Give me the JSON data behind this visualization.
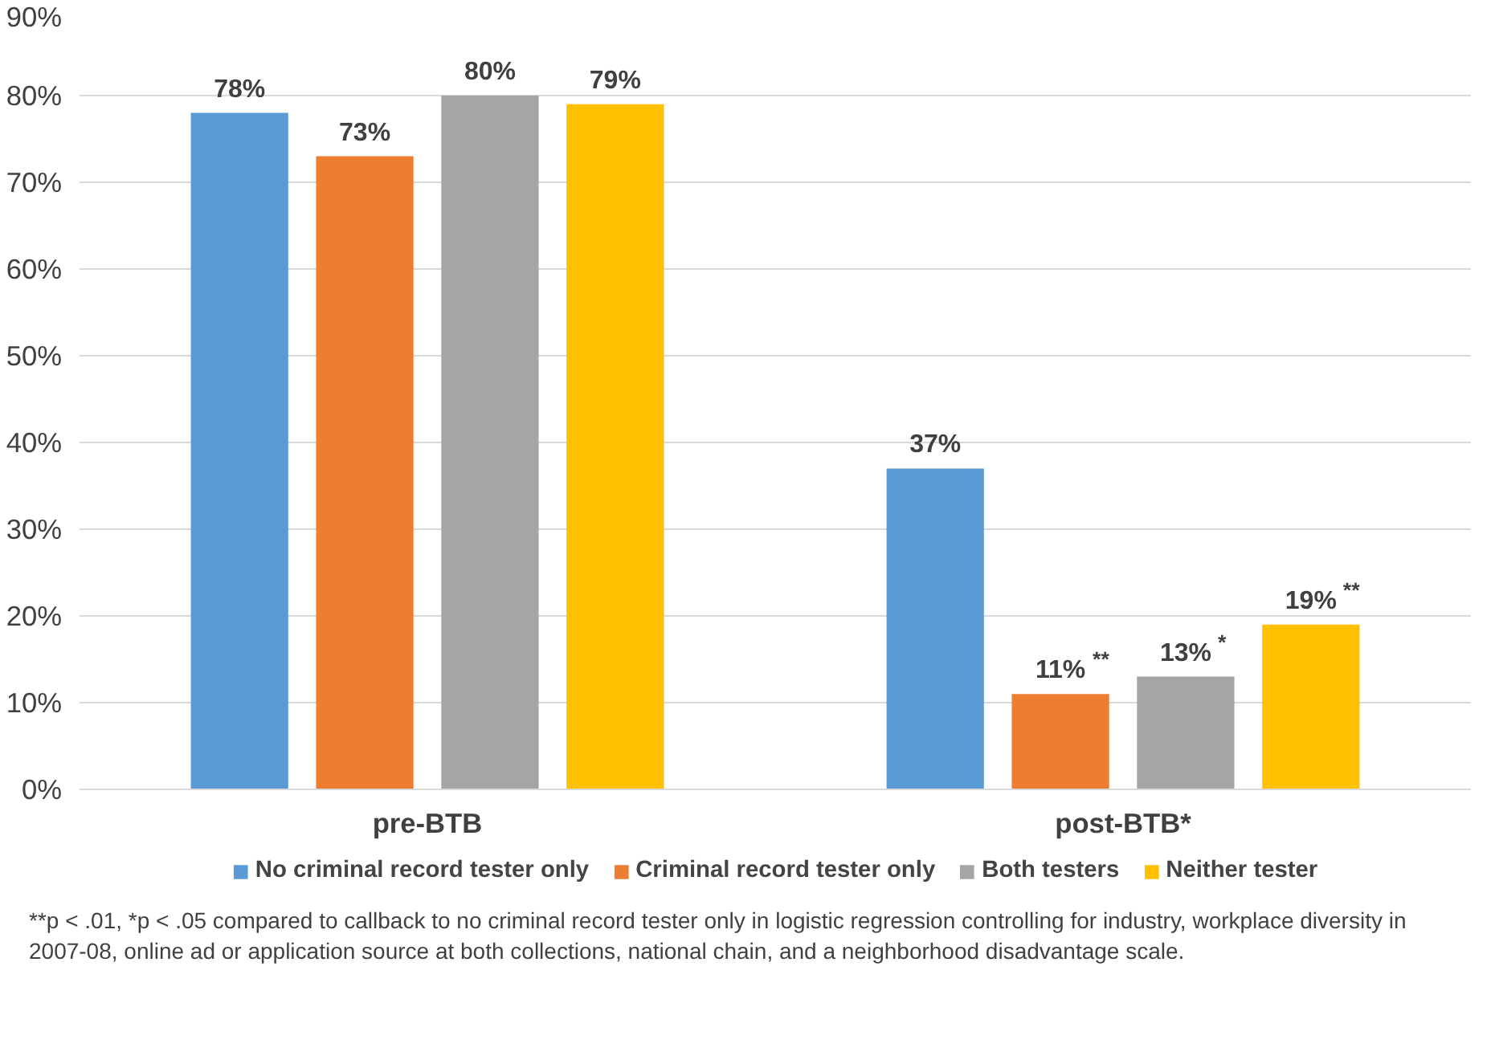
{
  "chart_data": {
    "type": "bar",
    "categories": [
      "pre-BTB",
      "post-BTB*"
    ],
    "series": [
      {
        "name": "No criminal record tester only",
        "color": "#5b9bd5",
        "values": [
          78,
          37
        ],
        "value_labels": [
          "78%",
          "37%"
        ]
      },
      {
        "name": "Criminal record tester only",
        "color": "#ed7d31",
        "values": [
          73,
          11
        ],
        "value_labels": [
          "73%",
          "11%$^{**}$"
        ]
      },
      {
        "name": "Both testers",
        "color": "#a5a5a5",
        "values": [
          80,
          13
        ],
        "value_labels": [
          "80%",
          "13%$^{*}$"
        ]
      },
      {
        "name": "Neither tester",
        "color": "#ffc000",
        "values": [
          79,
          19
        ],
        "value_labels": [
          "79%",
          "19%$^{**}$"
        ]
      }
    ],
    "ylim": [
      0,
      90
    ],
    "yticks": [
      {
        "value": 0,
        "label": "0%"
      },
      {
        "value": 10,
        "label": "10%"
      },
      {
        "value": 20,
        "label": "20%"
      },
      {
        "value": 30,
        "label": "30%"
      },
      {
        "value": 40,
        "label": "40%"
      },
      {
        "value": 50,
        "label": "50%"
      },
      {
        "value": 60,
        "label": "60%"
      },
      {
        "value": 70,
        "label": "70%"
      },
      {
        "value": 80,
        "label": "80%"
      },
      {
        "value": 90,
        "label": "90%"
      }
    ],
    "grid": "y",
    "legend": "bottom",
    "annotations": [
      "**p < .01, *p < .05 compared to callback to no criminal record tester only in logistic regression controlling for industry, workplace diversity in 2007-08, online ad or application source at both collections, national chain, and a neighborhood disadvantage scale."
    ]
  }
}
